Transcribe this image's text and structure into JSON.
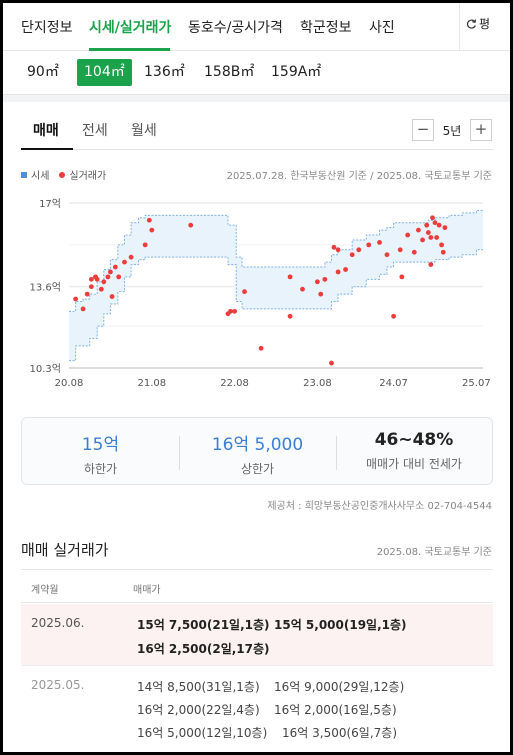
{
  "nav": {
    "tabs": [
      "단지정보",
      "시세/실거래가",
      "동호수/공시가격",
      "학군정보",
      "사진"
    ],
    "active_index": 1,
    "unit_label": "평"
  },
  "sizes": {
    "options": [
      "90㎡",
      "104㎡",
      "136㎡",
      "158B㎡",
      "159A㎡"
    ],
    "selected": "104㎡"
  },
  "deal_tabs": {
    "items": [
      "매매",
      "전세",
      "월세"
    ],
    "active": "매매"
  },
  "period": {
    "value": "5년",
    "minus": "−",
    "plus": "+"
  },
  "legend": {
    "band": "시세",
    "dots": "실거래가"
  },
  "chart_source": "2025.07.28. 한국부동산원 기준 / 2025.08. 국토교통부 기준",
  "colors": {
    "accent": "#1aa34a",
    "band": "#4d8fd9",
    "dot": "#ec3c3c",
    "value_blue": "#3a7fd6"
  },
  "chart_data": {
    "type": "scatter",
    "title": "",
    "xlabel": "",
    "ylabel": "",
    "x_ticks": [
      "20.08",
      "21.08",
      "22.08",
      "23.08",
      "24.07",
      "25.07"
    ],
    "y_ticks": [
      "17억",
      "13.6억",
      "10.3억"
    ],
    "ylim": [
      10.3,
      17
    ],
    "xlim": [
      2020.58,
      2025.58
    ],
    "series": [
      {
        "name": "시세",
        "kind": "band",
        "x": [
          2020.58,
          2020.66,
          2020.75,
          2020.83,
          2020.92,
          2021.0,
          2021.08,
          2021.17,
          2021.25,
          2021.33,
          2021.42,
          2021.5,
          2021.58,
          2021.67,
          2021.83,
          2022.0,
          2022.17,
          2022.33,
          2022.5,
          2022.6,
          2022.67,
          2022.75,
          2022.92,
          2023.08,
          2023.25,
          2023.42,
          2023.58,
          2023.67,
          2023.75,
          2023.83,
          2024.0,
          2024.17,
          2024.33,
          2024.42,
          2024.5,
          2024.67,
          2024.83,
          2024.92,
          2025.0,
          2025.17,
          2025.33,
          2025.5
        ],
        "low": [
          10.6,
          11.2,
          11.2,
          11.5,
          12.0,
          12.5,
          12.9,
          13.4,
          14.0,
          14.5,
          14.7,
          14.8,
          14.8,
          14.8,
          14.8,
          14.8,
          14.8,
          14.8,
          14.5,
          13.0,
          12.7,
          12.7,
          12.7,
          12.7,
          12.7,
          12.7,
          12.7,
          12.7,
          13.0,
          13.3,
          13.6,
          13.9,
          14.1,
          14.4,
          14.6,
          14.6,
          14.6,
          14.6,
          14.7,
          14.8,
          14.9,
          15.1
        ],
        "high": [
          12.6,
          13.0,
          13.1,
          13.3,
          13.8,
          14.3,
          14.7,
          15.3,
          15.7,
          16.2,
          16.4,
          16.5,
          16.5,
          16.5,
          16.5,
          16.5,
          16.5,
          16.5,
          16.1,
          14.8,
          14.4,
          14.4,
          14.4,
          14.4,
          14.4,
          14.4,
          14.4,
          14.6,
          14.9,
          15.1,
          15.5,
          15.7,
          15.9,
          16.0,
          16.2,
          16.2,
          16.2,
          16.3,
          16.4,
          16.5,
          16.6,
          16.7
        ]
      },
      {
        "name": "실거래가",
        "kind": "points",
        "points": [
          [
            2020.66,
            13.1
          ],
          [
            2020.75,
            12.7
          ],
          [
            2020.8,
            13.3
          ],
          [
            2020.85,
            13.6
          ],
          [
            2020.85,
            13.9
          ],
          [
            2020.9,
            14.0
          ],
          [
            2020.92,
            13.9
          ],
          [
            2020.97,
            13.5
          ],
          [
            2021.0,
            13.8
          ],
          [
            2021.05,
            14.0
          ],
          [
            2021.08,
            14.2
          ],
          [
            2021.1,
            13.2
          ],
          [
            2021.14,
            14.4
          ],
          [
            2021.18,
            14.0
          ],
          [
            2021.25,
            14.6
          ],
          [
            2021.33,
            14.8
          ],
          [
            2021.5,
            15.3
          ],
          [
            2021.55,
            16.3
          ],
          [
            2021.58,
            15.9
          ],
          [
            2022.05,
            16.1
          ],
          [
            2022.5,
            12.5
          ],
          [
            2022.53,
            12.6
          ],
          [
            2022.58,
            12.6
          ],
          [
            2022.7,
            13.4
          ],
          [
            2022.9,
            11.1
          ],
          [
            2023.25,
            14.0
          ],
          [
            2023.25,
            12.4
          ],
          [
            2023.4,
            13.5
          ],
          [
            2023.58,
            13.8
          ],
          [
            2023.62,
            13.3
          ],
          [
            2023.67,
            13.9
          ],
          [
            2023.75,
            10.5
          ],
          [
            2023.78,
            15.2
          ],
          [
            2023.83,
            15.1
          ],
          [
            2023.83,
            14.2
          ],
          [
            2023.92,
            14.3
          ],
          [
            2024.0,
            14.9
          ],
          [
            2024.08,
            15.1
          ],
          [
            2024.2,
            15.3
          ],
          [
            2024.33,
            15.4
          ],
          [
            2024.42,
            14.9
          ],
          [
            2024.5,
            12.4
          ],
          [
            2024.58,
            15.1
          ],
          [
            2024.6,
            14.0
          ],
          [
            2024.67,
            15.7
          ],
          [
            2024.75,
            15.0
          ],
          [
            2024.8,
            15.9
          ],
          [
            2024.85,
            15.5
          ],
          [
            2024.9,
            16.1
          ],
          [
            2024.92,
            15.8
          ],
          [
            2024.95,
            15.6
          ],
          [
            2024.95,
            14.5
          ],
          [
            2024.97,
            16.4
          ],
          [
            2025.0,
            16.2
          ],
          [
            2025.02,
            15.6
          ],
          [
            2025.05,
            16.1
          ],
          [
            2025.08,
            15.3
          ],
          [
            2025.1,
            15.0
          ],
          [
            2025.12,
            16.0
          ]
        ]
      }
    ]
  },
  "summary": {
    "low_value": "15억",
    "low_label": "하한가",
    "high_value": "16억 5,000",
    "high_label": "상한가",
    "ratio_value": "46~48%",
    "ratio_label": "매매가 대비 전세가"
  },
  "provider": "제공처 : 희망부동산공인중개사사무소 02-704-4544",
  "deals": {
    "title": "매매 실거래가",
    "source": "2025.08. 국토교통부 기준",
    "col_month": "계약월",
    "col_price": "매매가",
    "rows": [
      {
        "month": "2025.06.",
        "items": [
          "15억 7,500(21일,1층)",
          "15억 5,000(19일,1층)",
          "16억 2,500(2일,17층)"
        ]
      },
      {
        "month": "2025.05.",
        "items": [
          "14억 8,500(31일,1층)",
          "16억 9,000(29일,12층)",
          "16억 2,000(22일,4층)",
          "16억 2,000(16일,5층)",
          "16억 5,000(12일,10층)",
          "16억 3,500(6일,7층)"
        ]
      }
    ]
  }
}
